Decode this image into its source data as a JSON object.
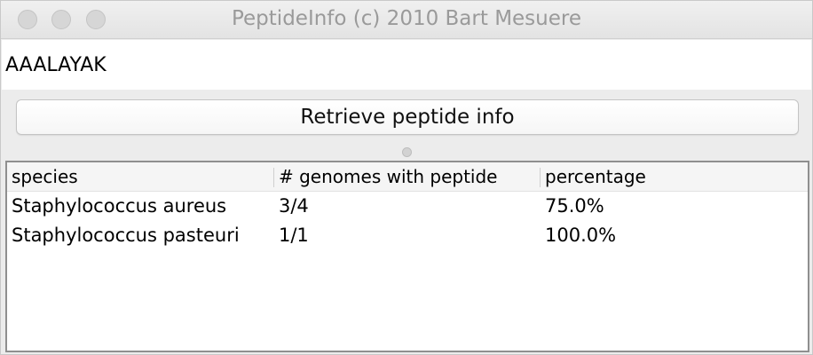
{
  "window": {
    "title": "PeptideInfo (c) 2010 Bart Mesuere"
  },
  "input": {
    "value": "AAALAYAK"
  },
  "button": {
    "label": "Retrieve peptide info"
  },
  "table": {
    "columns": [
      "species",
      "# genomes with peptide",
      "percentage"
    ],
    "rows": [
      [
        "Staphylococcus aureus",
        "3/4",
        "75.0%"
      ],
      [
        "Staphylococcus pasteuri",
        "1/1",
        "100.0%"
      ]
    ]
  }
}
